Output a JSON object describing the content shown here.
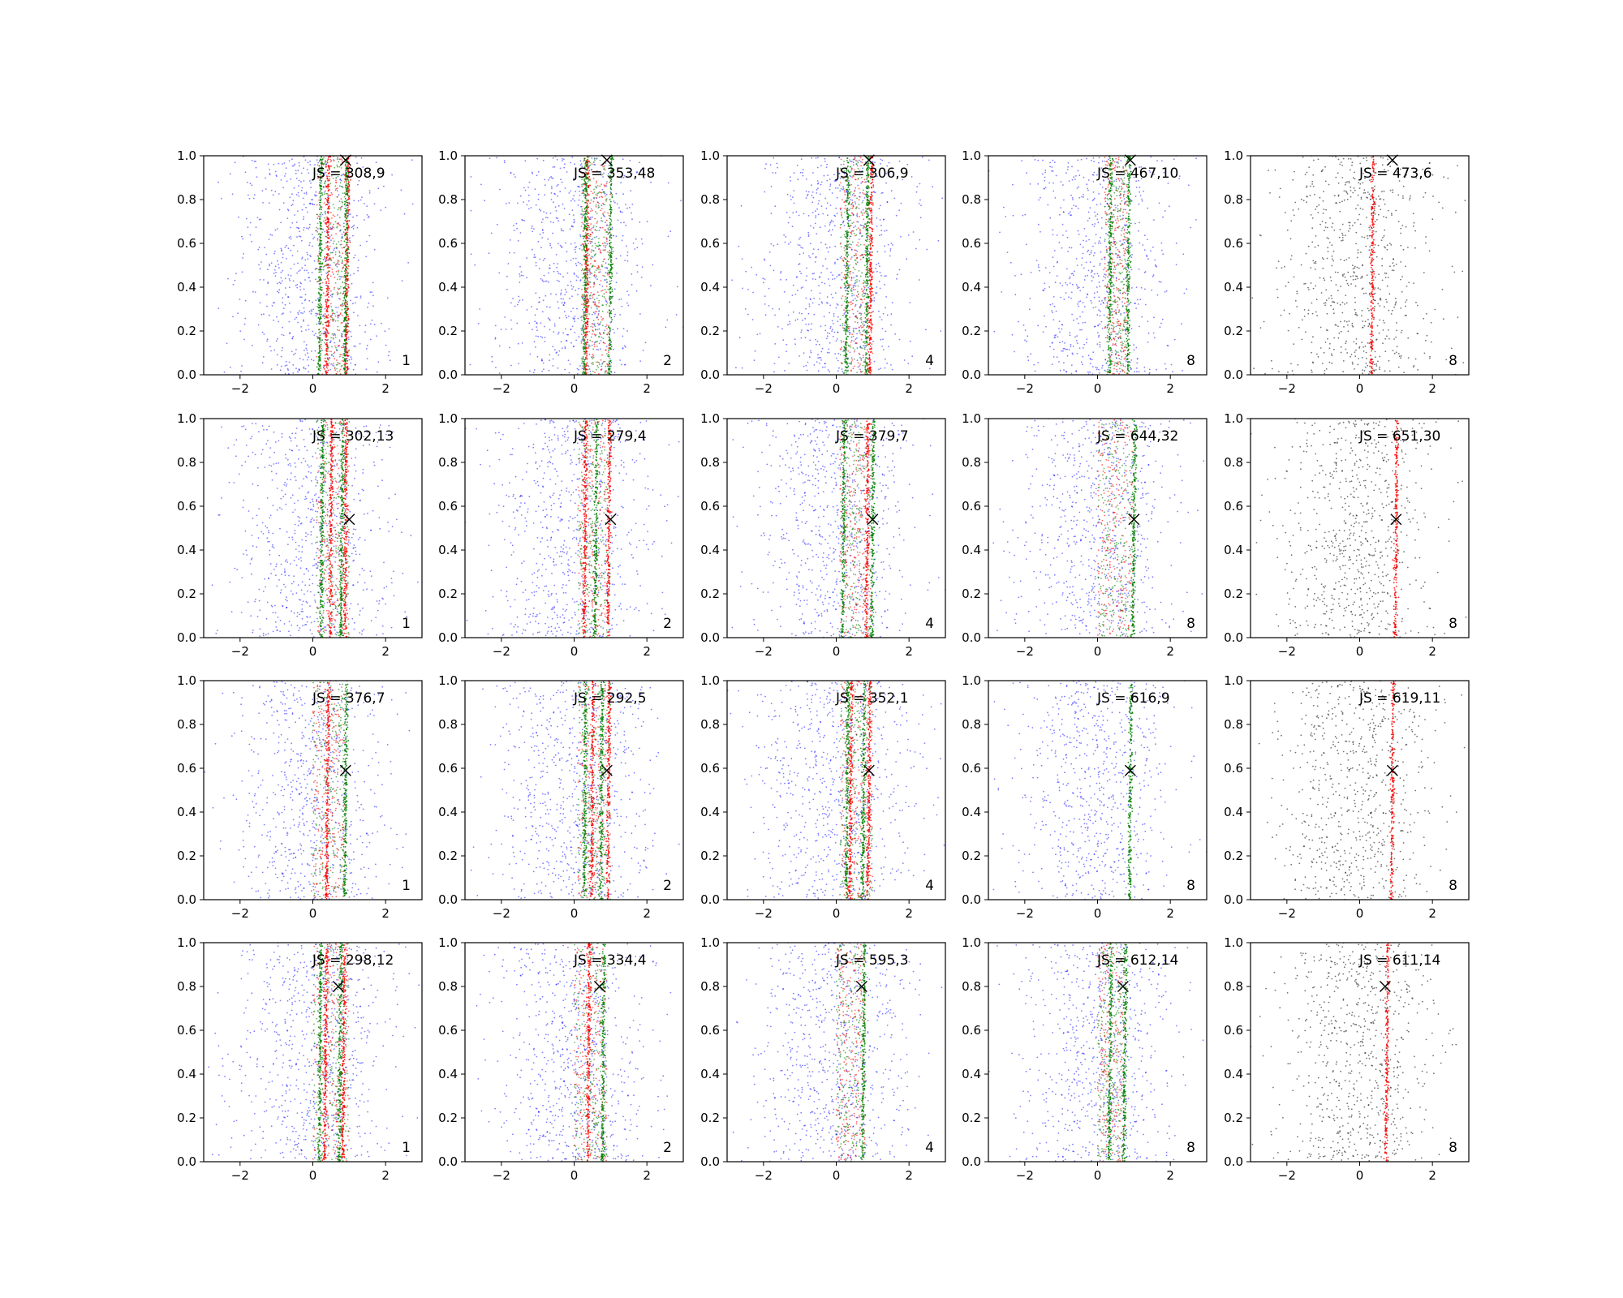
{
  "figure": {
    "colors": {
      "background": "#ffffff",
      "noise": "#0000ff",
      "noise_gray": "#000000",
      "red_series": "#ff0000",
      "green_series": "#008000",
      "marker": "#000000",
      "axes": "#000000"
    }
  },
  "chart_data": {
    "type": "scatter",
    "grid": false,
    "legend": "none",
    "xlim": [
      -3,
      3
    ],
    "ylim": [
      0,
      1
    ],
    "x_ticks": [
      -2,
      0,
      2
    ],
    "y_ticks": [
      0.0,
      0.2,
      0.4,
      0.6,
      0.8,
      1.0
    ],
    "x_tick_labels": [
      "−2",
      "0",
      "2"
    ],
    "y_tick_labels": [
      "0.0",
      "0.2",
      "0.4",
      "0.6",
      "0.8",
      "1.0"
    ],
    "rows": [
      {
        "marker": {
          "x": 0.9,
          "y": 0.98
        },
        "panels": [
          {
            "label": "JS = 308,9",
            "corner": "1",
            "style": "blue",
            "band": [
              0.1,
              1.0
            ],
            "red": [
              0.4,
              0.95
            ],
            "green": [
              0.2,
              0.9
            ]
          },
          {
            "label": "JS = 353,48",
            "corner": "2",
            "style": "blue",
            "band": [
              0.2,
              1.0
            ],
            "red": [
              0.35
            ],
            "green": [
              0.3,
              1.0
            ]
          },
          {
            "label": "JS = 306,9",
            "corner": "4",
            "style": "blue",
            "band": [
              0.1,
              1.0
            ],
            "red": [
              0.95
            ],
            "green": [
              0.3,
              0.85
            ]
          },
          {
            "label": "JS = 467,10",
            "corner": "8",
            "style": "blue",
            "band": [
              0.2,
              0.85
            ],
            "red": [],
            "green": [
              0.35,
              0.85
            ]
          },
          {
            "label": "JS = 473,6",
            "corner": "8",
            "style": "gray",
            "band": [],
            "red": [
              0.35
            ],
            "green": []
          }
        ]
      },
      {
        "marker": {
          "x": 1.0,
          "y": 0.54
        },
        "panels": [
          {
            "label": "JS = 302,13",
            "corner": "1",
            "style": "blue",
            "band": [
              0.1,
              1.0
            ],
            "red": [
              0.5,
              0.9
            ],
            "green": [
              0.25,
              0.8
            ]
          },
          {
            "label": "JS = 279,4",
            "corner": "2",
            "style": "blue",
            "band": [
              0.1,
              1.0
            ],
            "red": [
              0.3,
              0.95
            ],
            "green": [
              0.6
            ]
          },
          {
            "label": "JS = 379,7",
            "corner": "4",
            "style": "blue",
            "band": [
              0.1,
              1.0
            ],
            "red": [
              0.85
            ],
            "green": [
              0.2,
              1.0
            ]
          },
          {
            "label": "JS = 644,32",
            "corner": "8",
            "style": "blue",
            "band": [
              0.0,
              1.0
            ],
            "red": [],
            "green": [
              1.0
            ]
          },
          {
            "label": "JS = 651,30",
            "corner": "8",
            "style": "gray",
            "band": [],
            "red": [
              1.0
            ],
            "green": []
          }
        ]
      },
      {
        "marker": {
          "x": 0.9,
          "y": 0.59
        },
        "panels": [
          {
            "label": "JS = 376,7",
            "corner": "1",
            "style": "blue",
            "band": [
              0.0,
              0.9
            ],
            "red": [
              0.4
            ],
            "green": [
              0.9
            ]
          },
          {
            "label": "JS = 292,5",
            "corner": "2",
            "style": "blue",
            "band": [
              0.1,
              1.0
            ],
            "red": [
              0.5,
              0.95
            ],
            "green": [
              0.3,
              0.75
            ]
          },
          {
            "label": "JS = 352,1",
            "corner": "4",
            "style": "blue",
            "band": [
              0.1,
              1.0
            ],
            "red": [
              0.4,
              0.9
            ],
            "green": [
              0.3,
              0.75
            ]
          },
          {
            "label": "JS = 616,9",
            "corner": "8",
            "style": "blue",
            "band": [],
            "red": [],
            "green": [
              0.9
            ]
          },
          {
            "label": "JS = 619,11",
            "corner": "8",
            "style": "gray",
            "band": [],
            "red": [
              0.9
            ],
            "green": []
          }
        ]
      },
      {
        "marker": {
          "x": 0.7,
          "y": 0.8
        },
        "panels": [
          {
            "label": "JS = 298,12",
            "corner": "1",
            "style": "blue",
            "band": [
              0.0,
              1.0
            ],
            "red": [
              0.35,
              0.85
            ],
            "green": [
              0.2,
              0.75
            ]
          },
          {
            "label": "JS = 334,4",
            "corner": "2",
            "style": "blue",
            "band": [
              0.0,
              0.9
            ],
            "red": [
              0.4
            ],
            "green": [
              0.8
            ]
          },
          {
            "label": "JS = 595,3",
            "corner": "4",
            "style": "blue",
            "band": [
              0.0,
              0.8
            ],
            "red": [],
            "green": [
              0.75
            ]
          },
          {
            "label": "JS = 612,14",
            "corner": "8",
            "style": "blue",
            "band": [
              0.0,
              0.75
            ],
            "red": [],
            "green": [
              0.35,
              0.75
            ]
          },
          {
            "label": "JS = 611,14",
            "corner": "8",
            "style": "gray",
            "band": [],
            "red": [
              0.75
            ],
            "green": []
          }
        ]
      }
    ]
  }
}
